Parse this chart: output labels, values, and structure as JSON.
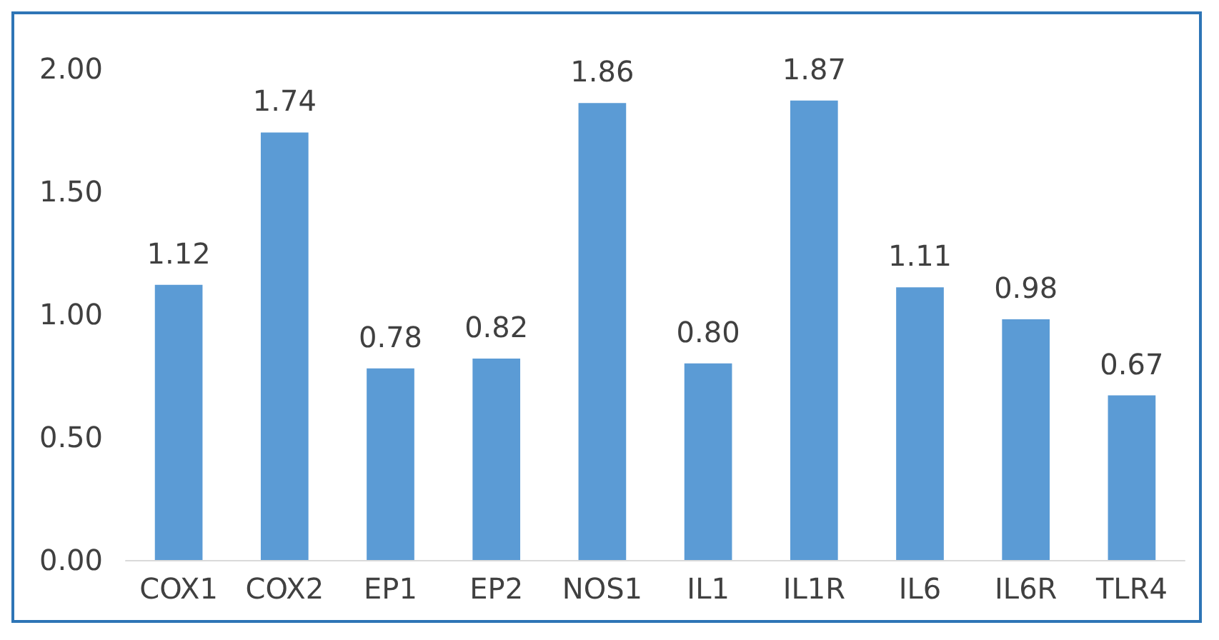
{
  "chart_data": {
    "type": "bar",
    "categories": [
      "COX1",
      "COX2",
      "EP1",
      "EP2",
      "NOS1",
      "IL1",
      "IL1R",
      "IL6",
      "IL6R",
      "TLR4"
    ],
    "values": [
      1.12,
      1.74,
      0.78,
      0.82,
      1.86,
      0.8,
      1.87,
      1.11,
      0.98,
      0.67
    ],
    "value_labels": [
      "1.12",
      "1.74",
      "0.78",
      "0.82",
      "1.86",
      "0.80",
      "1.87",
      "1.11",
      "0.98",
      "0.67"
    ],
    "color": "#5b9bd5",
    "ylim": [
      0,
      2
    ],
    "yticks": [
      {
        "value": 0,
        "label": "0.00"
      },
      {
        "value": 0.5,
        "label": "0.50"
      },
      {
        "value": 1,
        "label": "1.00"
      },
      {
        "value": 1.5,
        "label": "1.50"
      },
      {
        "value": 2,
        "label": "2.00"
      }
    ],
    "grid": false
  }
}
